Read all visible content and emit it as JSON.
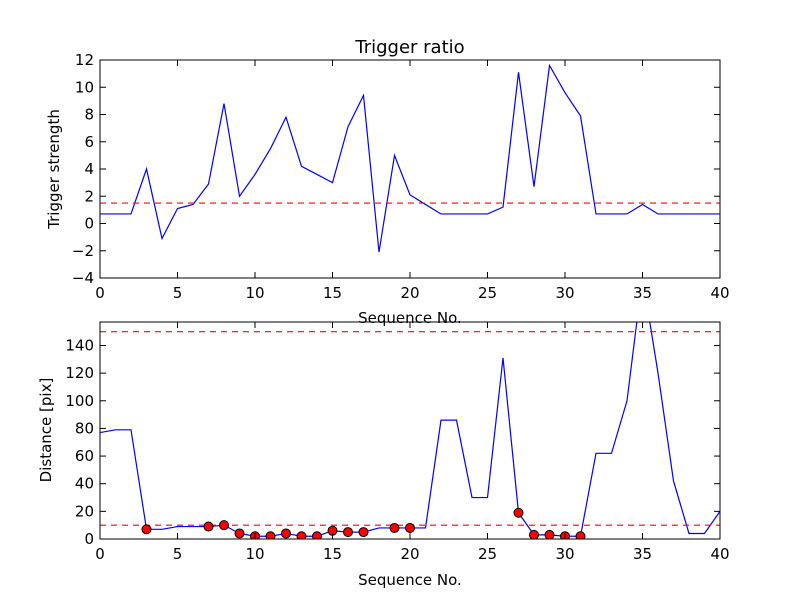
{
  "chart_data": [
    {
      "type": "line",
      "title": "Trigger ratio",
      "xlabel": "Sequence No.",
      "ylabel": "Trigger strength",
      "xlim": [
        0,
        40
      ],
      "ylim": [
        -4,
        12
      ],
      "xticks": [
        "0",
        "5",
        "10",
        "15",
        "20",
        "25",
        "30",
        "35",
        "40"
      ],
      "yticks": [
        "−4",
        "−2",
        "0",
        "2",
        "4",
        "6",
        "8",
        "10",
        "12"
      ],
      "grid": false,
      "series": [
        {
          "color": "#0000ff",
          "style": "solid",
          "x": [
            0,
            1,
            2,
            3,
            4,
            5,
            6,
            7,
            8,
            9,
            10,
            11,
            12,
            13,
            14,
            15,
            16,
            17,
            18,
            19,
            20,
            21,
            22,
            23,
            24,
            25,
            26,
            27,
            28,
            29,
            30,
            31,
            32,
            33,
            34,
            35,
            36,
            37,
            38,
            39,
            40
          ],
          "y": [
            0.7,
            0.7,
            0.7,
            4.0,
            -1.1,
            1.1,
            1.4,
            2.9,
            8.8,
            2.0,
            3.6,
            5.5,
            7.8,
            4.2,
            3.6,
            3.0,
            7.1,
            9.4,
            -2.1,
            5.0,
            2.1,
            1.4,
            0.7,
            0.7,
            0.7,
            0.7,
            1.2,
            11.1,
            2.7,
            11.6,
            9.6,
            7.9,
            0.7,
            0.7,
            0.7,
            1.4,
            0.7,
            0.7,
            0.7,
            0.7,
            0.7
          ]
        },
        {
          "color": "#ff0000",
          "style": "dashed",
          "x": [
            0,
            40
          ],
          "y": [
            1.5,
            1.5
          ]
        }
      ]
    },
    {
      "type": "line",
      "title": "",
      "xlabel": "Sequence No.",
      "ylabel": "Distance [pix]",
      "xlim": [
        0,
        40
      ],
      "ylim": [
        0,
        157
      ],
      "xticks": [
        "0",
        "5",
        "10",
        "15",
        "20",
        "25",
        "30",
        "35",
        "40"
      ],
      "yticks": [
        "0",
        "20",
        "40",
        "60",
        "80",
        "100",
        "120",
        "140"
      ],
      "grid": false,
      "series": [
        {
          "color": "#0000ff",
          "style": "solid",
          "x": [
            0,
            1,
            2,
            3,
            4,
            5,
            6,
            7,
            8,
            9,
            10,
            11,
            12,
            13,
            14,
            15,
            16,
            17,
            18,
            19,
            20,
            21,
            22,
            23,
            24,
            25,
            26,
            27,
            28,
            29,
            30,
            31,
            32,
            33,
            34,
            35,
            36,
            37,
            38,
            39,
            40
          ],
          "y": [
            77,
            79,
            79,
            7,
            7,
            9,
            9,
            9,
            10,
            4,
            2,
            2,
            4,
            2,
            2,
            6,
            5,
            5,
            8,
            8,
            8,
            8,
            86,
            86,
            30,
            30,
            131,
            19,
            3,
            3,
            2,
            2,
            62,
            62,
            100,
            190,
            120,
            42,
            4,
            4,
            20
          ]
        },
        {
          "color": "#ff0000",
          "style": "dashed",
          "x": [
            0,
            40
          ],
          "y": [
            150,
            150
          ]
        },
        {
          "color": "#ff0000",
          "style": "dashed",
          "x": [
            0,
            40
          ],
          "y": [
            10,
            10
          ]
        },
        {
          "color": "#ff0000",
          "style": "markers",
          "marker_edge": "#000000",
          "x": [
            3,
            7,
            8,
            9,
            10,
            11,
            12,
            13,
            14,
            15,
            16,
            17,
            19,
            20,
            27,
            28,
            29,
            30,
            31
          ],
          "y": [
            7,
            9,
            10,
            4,
            2,
            2,
            4,
            2,
            2,
            6,
            5,
            5,
            8,
            8,
            19,
            3,
            3,
            2,
            2
          ]
        }
      ]
    }
  ]
}
